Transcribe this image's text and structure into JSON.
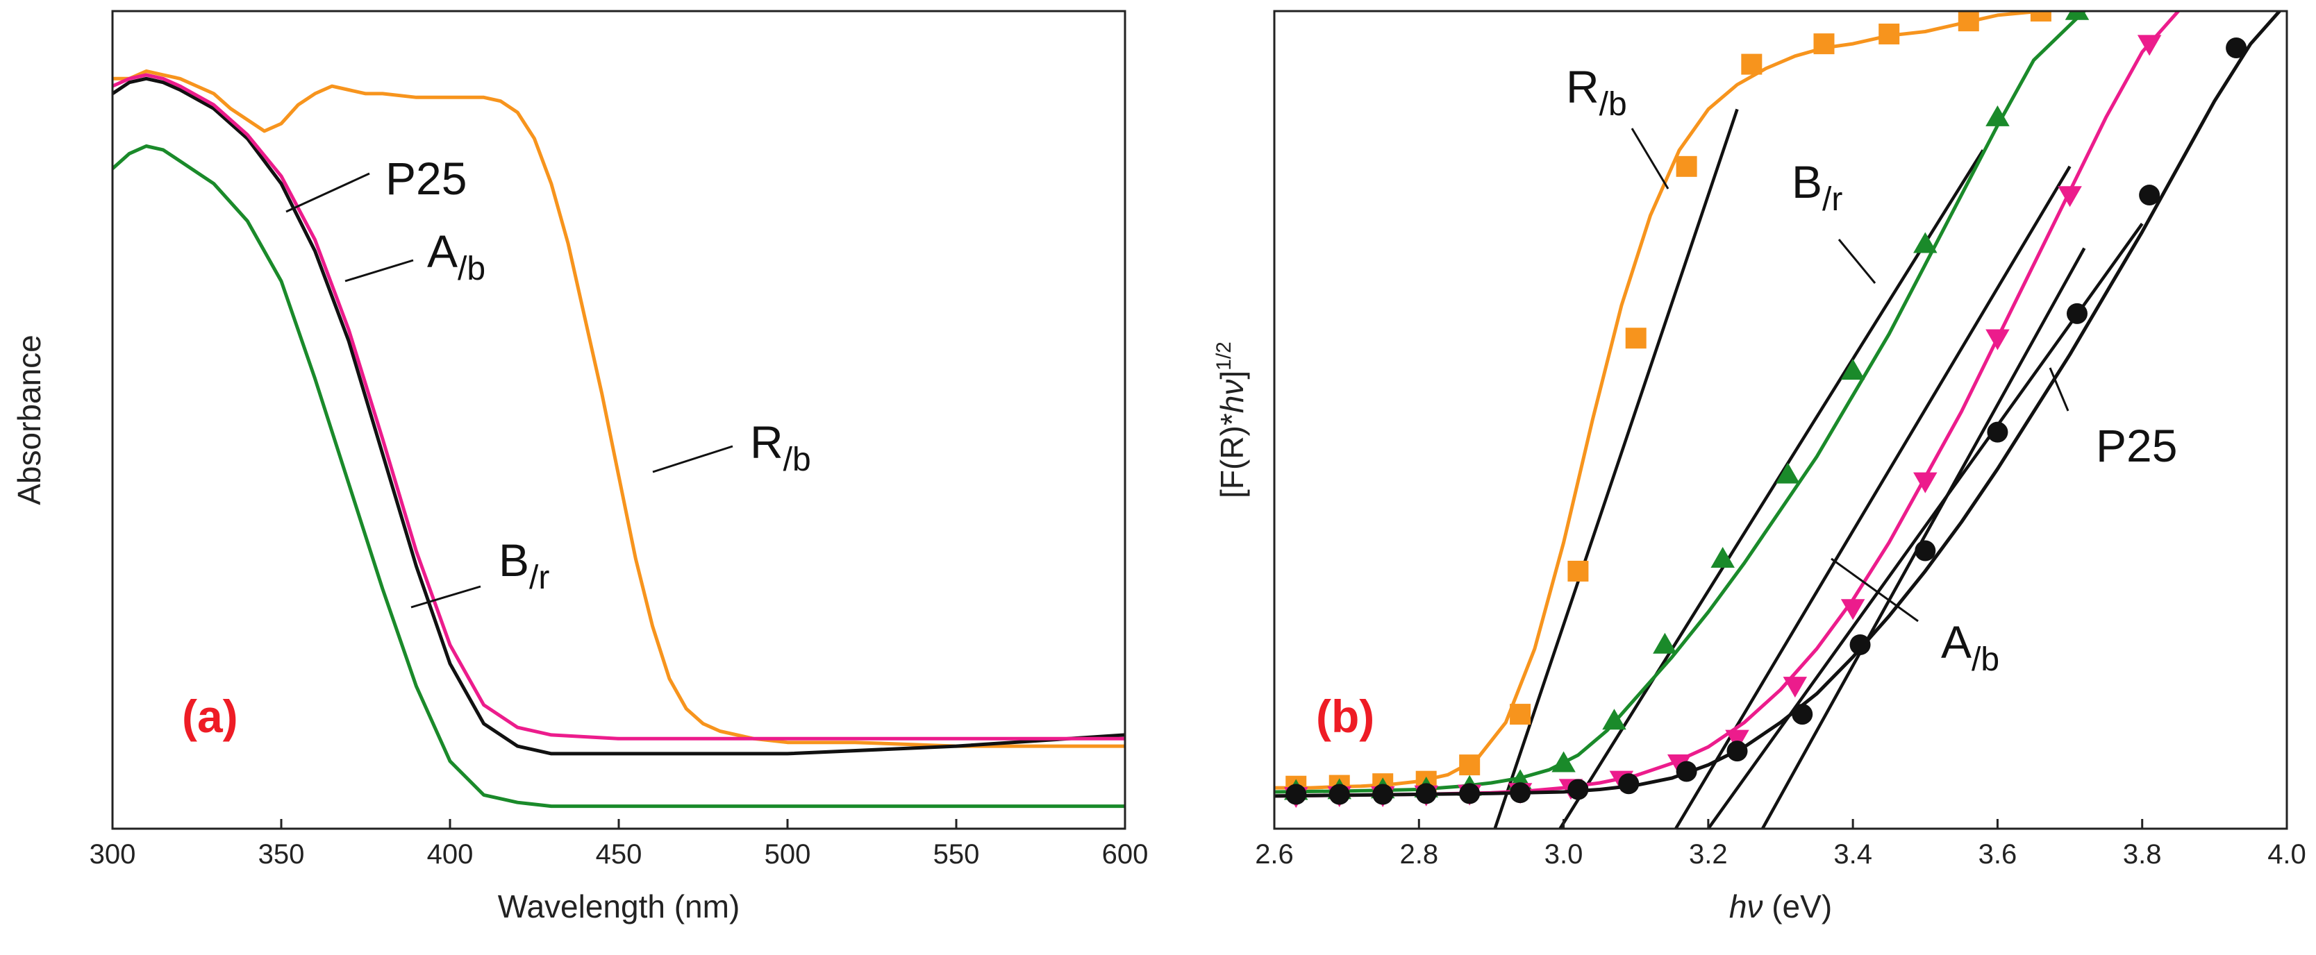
{
  "chart_data": [
    {
      "type": "line",
      "panel_label": "(a)",
      "xlabel": "Wavelength (nm)",
      "ylabel": "Absorbance",
      "xlim": [
        300,
        600
      ],
      "ylim": [
        0,
        1.09
      ],
      "x_ticks": [
        "300",
        "350",
        "400",
        "450",
        "500",
        "550",
        "600"
      ],
      "y_ticks_shown": false,
      "grid": false,
      "series": [
        {
          "name": "R/b",
          "label_main": "R",
          "label_sub": "/b",
          "color": "#F7941D",
          "x": [
            300,
            305,
            310,
            315,
            320,
            325,
            330,
            335,
            340,
            345,
            350,
            355,
            360,
            365,
            370,
            375,
            380,
            390,
            400,
            410,
            415,
            420,
            425,
            430,
            435,
            440,
            445,
            450,
            455,
            460,
            465,
            470,
            475,
            480,
            490,
            500,
            520,
            550,
            575,
            600
          ],
          "y": [
            1.0,
            1.0,
            1.01,
            1.005,
            1.0,
            0.99,
            0.98,
            0.96,
            0.945,
            0.93,
            0.94,
            0.965,
            0.98,
            0.99,
            0.985,
            0.98,
            0.98,
            0.975,
            0.975,
            0.975,
            0.97,
            0.955,
            0.92,
            0.86,
            0.78,
            0.68,
            0.58,
            0.47,
            0.36,
            0.27,
            0.2,
            0.16,
            0.14,
            0.13,
            0.12,
            0.115,
            0.115,
            0.11,
            0.11,
            0.11
          ]
        },
        {
          "name": "P25",
          "label_main": "P25",
          "label_sub": "",
          "color": "#111111",
          "x": [
            300,
            305,
            310,
            315,
            320,
            330,
            340,
            350,
            360,
            370,
            380,
            390,
            400,
            410,
            420,
            430,
            450,
            500,
            550,
            600
          ],
          "y": [
            0.98,
            0.995,
            1.0,
            0.995,
            0.985,
            0.96,
            0.92,
            0.86,
            0.77,
            0.65,
            0.5,
            0.35,
            0.22,
            0.14,
            0.11,
            0.1,
            0.1,
            0.1,
            0.11,
            0.125
          ]
        },
        {
          "name": "A/b",
          "label_main": "A",
          "label_sub": "/b",
          "color": "#EC1C8C",
          "x": [
            300,
            305,
            310,
            315,
            320,
            330,
            340,
            350,
            360,
            370,
            380,
            390,
            400,
            410,
            420,
            430,
            450,
            500,
            550,
            600
          ],
          "y": [
            0.99,
            1.0,
            1.005,
            1.0,
            0.99,
            0.965,
            0.925,
            0.87,
            0.785,
            0.665,
            0.52,
            0.37,
            0.245,
            0.165,
            0.135,
            0.125,
            0.12,
            0.12,
            0.12,
            0.12
          ]
        },
        {
          "name": "B/r",
          "label_main": "B",
          "label_sub": "/r",
          "color": "#1A8A2A",
          "x": [
            300,
            305,
            310,
            315,
            320,
            330,
            340,
            350,
            360,
            370,
            380,
            390,
            400,
            410,
            420,
            430,
            450,
            500,
            550,
            600
          ],
          "y": [
            0.88,
            0.9,
            0.91,
            0.905,
            0.89,
            0.86,
            0.81,
            0.73,
            0.6,
            0.46,
            0.32,
            0.19,
            0.09,
            0.045,
            0.035,
            0.03,
            0.03,
            0.03,
            0.03,
            0.03
          ]
        }
      ]
    },
    {
      "type": "line",
      "panel_label": "(b)",
      "xlabel": "hν (eV)",
      "xlabel_italic": "hν",
      "xlabel_unit": " (eV)",
      "ylabel": "[F(R)*hν]",
      "ylabel_prefix": "[F(R)*",
      "ylabel_italic": "hν",
      "ylabel_suffix": "]",
      "ylabel_superscript": "1/2",
      "xlim": [
        2.6,
        4.0
      ],
      "ylim": [
        0,
        1.0
      ],
      "x_ticks": [
        "2.6",
        "2.8",
        "3.0",
        "3.2",
        "3.4",
        "3.6",
        "3.8",
        "4.0"
      ],
      "y_ticks_shown": false,
      "grid": false,
      "series": [
        {
          "name": "R/b",
          "label_main": "R",
          "label_sub": "/b",
          "color": "#F7941D",
          "marker": "square",
          "x": [
            2.6,
            2.62,
            2.65,
            2.68,
            2.72,
            2.76,
            2.8,
            2.84,
            2.88,
            2.92,
            2.96,
            3.0,
            3.04,
            3.08,
            3.12,
            3.16,
            3.2,
            3.24,
            3.28,
            3.32,
            3.36,
            3.4,
            3.45,
            3.5,
            3.55,
            3.6,
            3.66
          ],
          "y": [
            0.05,
            0.05,
            0.05,
            0.051,
            0.052,
            0.054,
            0.058,
            0.066,
            0.085,
            0.13,
            0.22,
            0.35,
            0.5,
            0.64,
            0.75,
            0.83,
            0.88,
            0.91,
            0.93,
            0.945,
            0.955,
            0.96,
            0.97,
            0.975,
            0.985,
            0.995,
            1.0
          ],
          "marker_x": [
            2.63,
            2.69,
            2.75,
            2.81,
            2.87,
            2.94,
            3.02,
            3.1,
            3.17,
            3.26,
            3.36,
            3.45,
            3.56,
            3.66
          ],
          "marker_y": [
            0.052,
            0.053,
            0.055,
            0.058,
            0.078,
            0.14,
            0.315,
            0.6,
            0.81,
            0.935,
            0.96,
            0.972,
            0.988,
            1.0
          ],
          "fit_x": [
            2.905,
            3.24
          ],
          "fit_y": [
            0.0,
            0.88
          ]
        },
        {
          "name": "B/r",
          "label_main": "B",
          "label_sub": "/r",
          "color": "#1A8A2A",
          "marker": "triangle-up",
          "x": [
            2.6,
            2.7,
            2.8,
            2.86,
            2.9,
            2.94,
            2.98,
            3.02,
            3.06,
            3.1,
            3.15,
            3.2,
            3.25,
            3.3,
            3.35,
            3.4,
            3.45,
            3.5,
            3.55,
            3.6,
            3.65,
            3.72
          ],
          "y": [
            0.045,
            0.046,
            0.048,
            0.052,
            0.056,
            0.062,
            0.072,
            0.09,
            0.12,
            0.16,
            0.21,
            0.265,
            0.325,
            0.39,
            0.455,
            0.53,
            0.605,
            0.69,
            0.775,
            0.86,
            0.94,
            1.0
          ],
          "marker_x": [
            2.63,
            2.69,
            2.75,
            2.81,
            2.87,
            2.94,
            3.0,
            3.07,
            3.14,
            3.22,
            3.31,
            3.4,
            3.5,
            3.6,
            3.71
          ],
          "marker_y": [
            0.046,
            0.047,
            0.048,
            0.049,
            0.051,
            0.058,
            0.08,
            0.132,
            0.225,
            0.33,
            0.433,
            0.56,
            0.715,
            0.87,
            1.0
          ],
          "fit_x": [
            2.995,
            3.58
          ],
          "fit_y": [
            0.0,
            0.83
          ]
        },
        {
          "name": "A/b",
          "label_main": "A",
          "label_sub": "/b",
          "color": "#EC1C8C",
          "marker": "triangle-down",
          "x": [
            2.6,
            2.7,
            2.8,
            2.9,
            2.95,
            3.0,
            3.05,
            3.1,
            3.15,
            3.2,
            3.25,
            3.3,
            3.35,
            3.4,
            3.45,
            3.5,
            3.55,
            3.6,
            3.65,
            3.7,
            3.75,
            3.8,
            3.85
          ],
          "y": [
            0.04,
            0.041,
            0.042,
            0.044,
            0.046,
            0.05,
            0.056,
            0.065,
            0.08,
            0.1,
            0.13,
            0.17,
            0.22,
            0.28,
            0.35,
            0.43,
            0.51,
            0.6,
            0.69,
            0.78,
            0.87,
            0.95,
            1.0
          ],
          "marker_x": [
            2.63,
            2.69,
            2.75,
            2.81,
            2.87,
            2.94,
            3.01,
            3.08,
            3.16,
            3.24,
            3.32,
            3.4,
            3.5,
            3.6,
            3.7,
            3.81
          ],
          "marker_y": [
            0.04,
            0.041,
            0.041,
            0.042,
            0.043,
            0.045,
            0.05,
            0.06,
            0.08,
            0.11,
            0.175,
            0.27,
            0.425,
            0.6,
            0.775,
            0.96
          ],
          "fit_x": [
            3.155,
            3.7
          ],
          "fit_y": [
            0.0,
            0.81
          ]
        },
        {
          "name": "P25",
          "label_main": "P25",
          "label_sub": "",
          "color": "#111111",
          "marker": "circle",
          "x": [
            2.6,
            2.7,
            2.8,
            2.9,
            3.0,
            3.05,
            3.1,
            3.15,
            3.2,
            3.25,
            3.3,
            3.35,
            3.4,
            3.45,
            3.5,
            3.55,
            3.6,
            3.65,
            3.7,
            3.75,
            3.8,
            3.85,
            3.9,
            3.95,
            3.99
          ],
          "y": [
            0.04,
            0.041,
            0.042,
            0.043,
            0.045,
            0.048,
            0.053,
            0.062,
            0.078,
            0.1,
            0.13,
            0.165,
            0.21,
            0.26,
            0.315,
            0.375,
            0.44,
            0.51,
            0.58,
            0.655,
            0.73,
            0.81,
            0.89,
            0.96,
            1.0
          ],
          "marker_x": [
            2.63,
            2.69,
            2.75,
            2.81,
            2.87,
            2.94,
            3.02,
            3.09,
            3.17,
            3.24,
            3.33,
            3.41,
            3.5,
            3.6,
            3.71,
            3.81,
            3.93
          ],
          "marker_y": [
            0.042,
            0.042,
            0.042,
            0.043,
            0.043,
            0.044,
            0.048,
            0.055,
            0.07,
            0.095,
            0.14,
            0.225,
            0.34,
            0.485,
            0.63,
            0.775,
            0.955
          ],
          "fit_x": [
            3.2,
            3.8
          ],
          "fit_y": [
            0.0,
            0.74
          ],
          "fit2_x": [
            3.275,
            3.72
          ],
          "fit2_y": [
            0.0,
            0.71
          ]
        }
      ]
    }
  ]
}
